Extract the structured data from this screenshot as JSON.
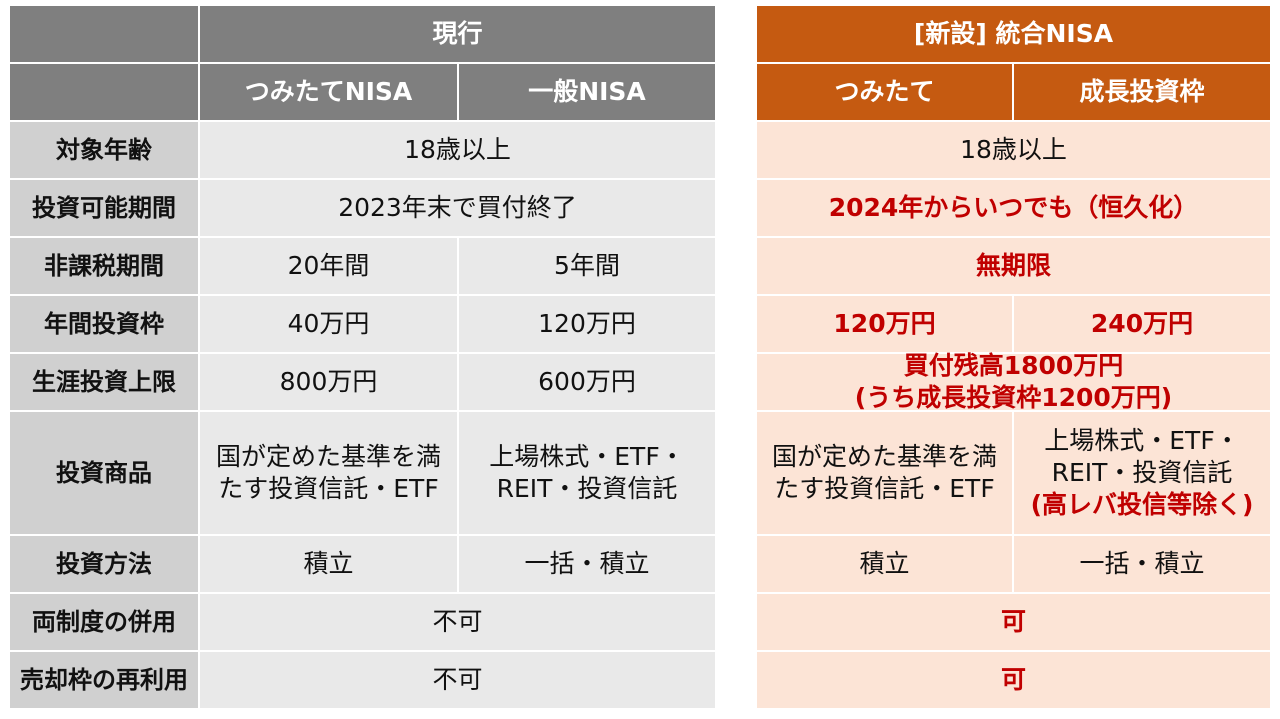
{
  "left": {
    "header": "現行",
    "sub_headers": [
      "つみたてNISA",
      "一般NISA"
    ],
    "rows": [
      {
        "label": "対象年齢",
        "merged": "18歳以上"
      },
      {
        "label": "投資可能期間",
        "merged": "2023年末で買付終了"
      },
      {
        "label": "非課税期間",
        "c1": "20年間",
        "c2": "5年間"
      },
      {
        "label": "年間投資枠",
        "c1": "40万円",
        "c2": "120万円"
      },
      {
        "label": "生涯投資上限",
        "c1": "800万円",
        "c2": "600万円"
      },
      {
        "label": "投資商品",
        "c1_lines": [
          "国が定めた基準を満",
          "たす投資信託・ETF"
        ],
        "c2_lines": [
          "上場株式・ETF・",
          "REIT・投資信託"
        ]
      },
      {
        "label": "投資方法",
        "c1": "積立",
        "c2": "一括・積立"
      },
      {
        "label": "両制度の併用",
        "merged": "不可"
      },
      {
        "label": "売却枠の再利用",
        "merged": "不可"
      }
    ]
  },
  "right": {
    "header": "[新設] 統合NISA",
    "sub_headers": [
      "つみたて",
      "成長投資枠"
    ],
    "rows": [
      {
        "merged": "18歳以上"
      },
      {
        "merged": "2024年からいつでも（恒久化）"
      },
      {
        "merged": "無期限"
      },
      {
        "c1": "120万円",
        "c2": "240万円"
      },
      {
        "merged_lines": [
          "買付残高1800万円",
          "(うち成長投資枠1200万円)"
        ]
      },
      {
        "c1_lines": [
          "国が定めた基準を満",
          "たす投資信託・ETF"
        ],
        "c2_lines": [
          "上場株式・ETF・",
          "REIT・投資信託",
          "(高レバ投信等除く)"
        ]
      },
      {
        "c1": "積立",
        "c2": "一括・積立"
      },
      {
        "merged": "可"
      },
      {
        "merged": "可"
      }
    ]
  },
  "colors": {
    "left_header": "#7f7f7f",
    "left_label": "#d0d0d0",
    "left_cell": "#e9e9e9",
    "right_header": "#c55a11",
    "right_cell": "#fce4d6",
    "highlight_text": "#c00000"
  }
}
